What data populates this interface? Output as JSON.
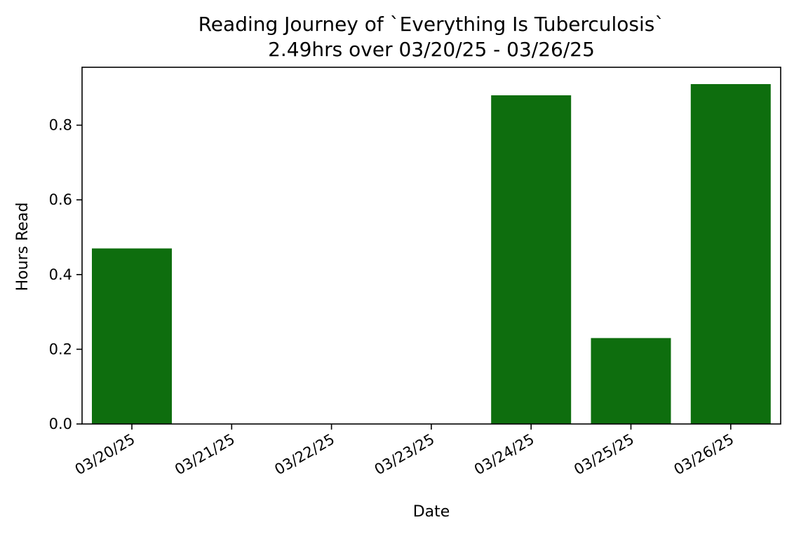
{
  "chart_data": {
    "type": "bar",
    "title": "Reading Journey of `Everything Is Tuberculosis`",
    "subtitle": "2.49hrs over 03/20/25 - 03/26/25",
    "xlabel": "Date",
    "ylabel": "Hours Read",
    "categories": [
      "03/20/25",
      "03/21/25",
      "03/22/25",
      "03/23/25",
      "03/24/25",
      "03/25/25",
      "03/26/25"
    ],
    "values": [
      0.47,
      0,
      0,
      0,
      0.88,
      0.23,
      0.91
    ],
    "ylim": [
      0,
      0.955
    ],
    "yticks": [
      0.0,
      0.2,
      0.4,
      0.6,
      0.8
    ],
    "ytick_labels": [
      "0.0",
      "0.2",
      "0.4",
      "0.6",
      "0.8"
    ],
    "grid": false,
    "bar_color": "#0e6e0e"
  }
}
